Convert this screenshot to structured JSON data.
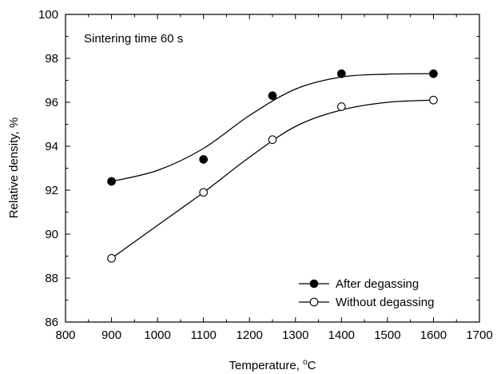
{
  "chart_data": {
    "type": "scatter",
    "title": "",
    "annotation": "Sintering time 60 s",
    "xlabel_main": "Temperature, ",
    "xlabel_sup": "o",
    "xlabel_end": "C",
    "ylabel": "Relative density, %",
    "xlim": [
      800,
      1700
    ],
    "ylim": [
      86,
      100
    ],
    "x_ticks": [
      800,
      900,
      1000,
      1100,
      1200,
      1300,
      1400,
      1500,
      1600,
      1700
    ],
    "y_ticks": [
      86,
      88,
      90,
      92,
      94,
      96,
      98,
      100
    ],
    "grid": false,
    "legend_position": "bottom-right",
    "series": [
      {
        "name": "After degassing",
        "marker": "filled-circle",
        "x": [
          900,
          1100,
          1250,
          1400,
          1600
        ],
        "y": [
          92.4,
          93.4,
          96.3,
          97.3,
          97.3
        ],
        "curve": [
          [
            900,
            92.4
          ],
          [
            1000,
            92.9
          ],
          [
            1100,
            93.9
          ],
          [
            1200,
            95.4
          ],
          [
            1300,
            96.6
          ],
          [
            1400,
            97.15
          ],
          [
            1500,
            97.28
          ],
          [
            1600,
            97.3
          ]
        ]
      },
      {
        "name": "Without degassing",
        "marker": "open-circle",
        "x": [
          900,
          1100,
          1250,
          1400,
          1600
        ],
        "y": [
          88.9,
          91.9,
          94.3,
          95.8,
          96.1
        ],
        "curve": [
          [
            900,
            88.9
          ],
          [
            1000,
            90.4
          ],
          [
            1100,
            91.9
          ],
          [
            1200,
            93.5
          ],
          [
            1300,
            94.9
          ],
          [
            1400,
            95.65
          ],
          [
            1500,
            96.0
          ],
          [
            1600,
            96.1
          ]
        ]
      }
    ]
  }
}
